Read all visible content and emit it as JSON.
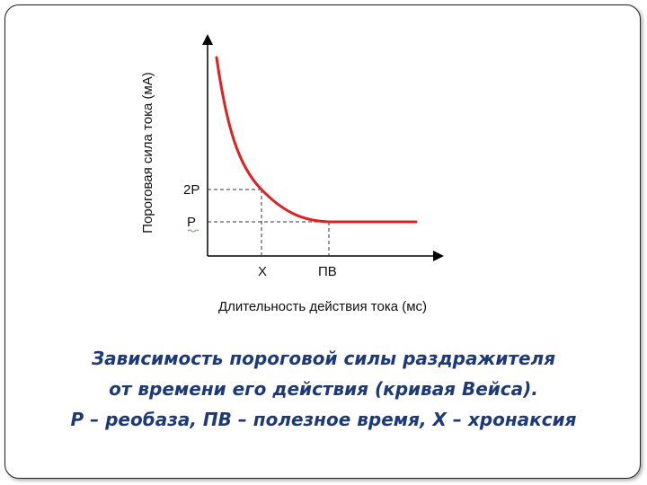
{
  "diagram": {
    "y_axis_label": "Пороговая сила тока (мА)",
    "x_axis_label": "Длительность действия тока (мс)",
    "y_ticks": [
      "2P",
      "P"
    ],
    "x_ticks": [
      "X",
      "ПВ"
    ],
    "curve_color": "#e02020",
    "axis_color": "#000000",
    "guide_color": "#333333"
  },
  "caption": {
    "line1": "Зависимость пороговой силы раздражителя",
    "line2": "от времени его действия (кривая Вейса).",
    "line3": "Р – реобаза, ПВ – полезное время, Х – хронаксия"
  }
}
